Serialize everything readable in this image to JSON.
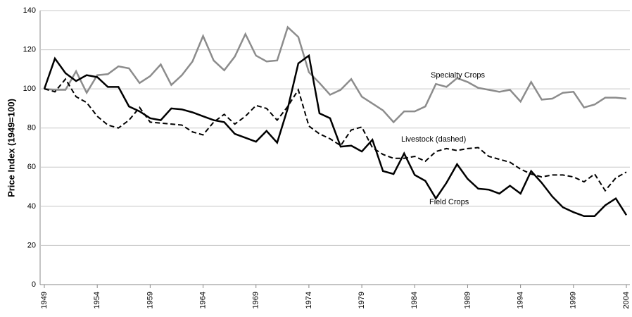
{
  "chart_data": {
    "type": "line",
    "y_label": "Price Index (1949=100)",
    "x": [
      1949,
      1950,
      1951,
      1952,
      1953,
      1954,
      1955,
      1956,
      1957,
      1958,
      1959,
      1960,
      1961,
      1962,
      1963,
      1964,
      1965,
      1966,
      1967,
      1968,
      1969,
      1970,
      1971,
      1972,
      1973,
      1974,
      1975,
      1976,
      1977,
      1978,
      1979,
      1980,
      1981,
      1982,
      1983,
      1984,
      1985,
      1986,
      1987,
      1988,
      1989,
      1990,
      1991,
      1992,
      1993,
      1994,
      1995,
      1996,
      1997,
      1998,
      1999,
      2000,
      2001,
      2002,
      2003,
      2004
    ],
    "xlim": [
      1949,
      2004
    ],
    "xticks": [
      1949,
      1954,
      1959,
      1964,
      1969,
      1974,
      1979,
      1984,
      1989,
      1994,
      1999,
      2004
    ],
    "ylim": [
      0,
      140
    ],
    "yticks": [
      0,
      20,
      40,
      60,
      80,
      100,
      120,
      140
    ],
    "grid": true,
    "series": [
      {
        "name": "Specialty Crops",
        "color": "#8c8c8c",
        "dashed": false,
        "values": [
          100,
          99.5,
          99.5,
          109,
          98,
          107,
          107.5,
          111.5,
          110.5,
          103,
          106.5,
          112.5,
          102,
          107,
          114,
          127,
          114.5,
          109.5,
          116.5,
          128,
          117,
          114,
          114.5,
          131.5,
          126.5,
          108.5,
          103,
          97,
          99.5,
          105,
          96,
          92.5,
          89,
          83,
          88.5,
          88.5,
          91,
          102.5,
          101,
          105.5,
          103.5,
          100.5,
          99.5,
          98.5,
          99.5,
          93.5,
          103.5,
          94.5,
          95,
          98,
          98.5,
          90.5,
          92,
          95.5,
          95.5,
          95
        ]
      },
      {
        "name": "Livestock (dashed)",
        "color": "#000000",
        "dashed": true,
        "values": [
          100,
          98.5,
          105,
          96,
          93,
          86,
          81.5,
          80,
          84,
          90.5,
          83,
          82.5,
          82,
          81.5,
          78,
          76.5,
          83,
          87,
          82,
          86,
          91.5,
          90,
          84,
          91,
          99.5,
          81,
          77,
          74.5,
          71,
          79,
          80.5,
          70,
          66.5,
          64.5,
          64.5,
          65.5,
          63,
          68,
          69.5,
          68.5,
          69.5,
          70,
          65.5,
          64,
          62.5,
          59,
          56.5,
          55,
          56,
          56,
          55,
          52.5,
          56.5,
          48,
          54.5,
          57.5
        ]
      },
      {
        "name": "Field Crops",
        "color": "#000000",
        "dashed": false,
        "values": [
          100,
          115.5,
          108,
          104,
          107,
          106,
          101,
          101,
          91,
          88.5,
          85,
          84,
          90,
          89.5,
          88,
          86,
          84,
          83,
          77,
          75,
          73,
          78.5,
          72.5,
          90,
          113,
          117,
          87.5,
          85,
          70.5,
          71,
          68,
          74,
          58,
          56.5,
          67,
          56,
          53,
          44,
          52,
          61.5,
          54,
          49,
          48.5,
          46.5,
          50.5,
          46.5,
          58,
          52,
          45,
          39.5,
          37,
          35,
          35,
          40.5,
          44,
          35.5
        ]
      }
    ]
  }
}
